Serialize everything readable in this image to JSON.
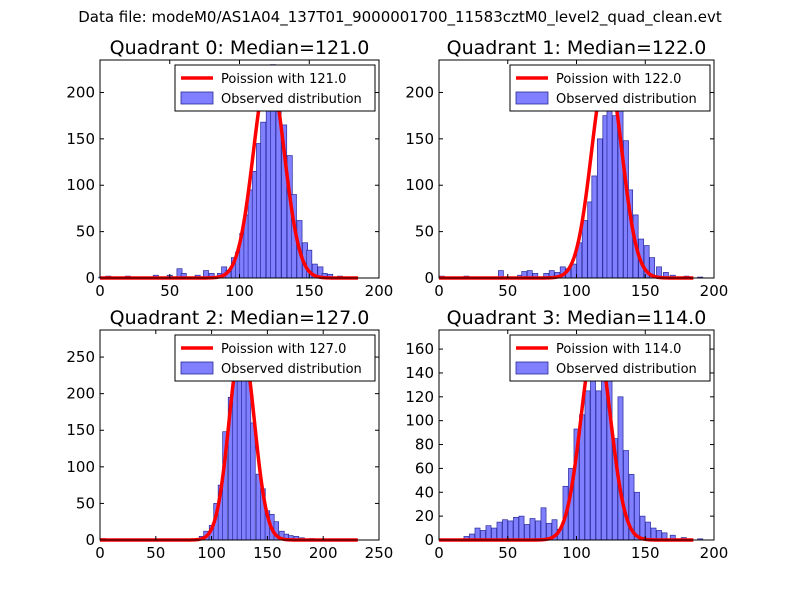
{
  "figure": {
    "suptitle": "Data file: modeM0/AS1A04_137T01_9000001700_11583cztM0_level2_quad_clean.evt"
  },
  "colors": {
    "hist_fill": "#7f7fff",
    "hist_edge": "#2a2a9a",
    "poisson_line": "#ff0000",
    "axes": "#000000",
    "legend_edge": "#000000"
  },
  "chart_data": [
    {
      "type": "bar",
      "title": "Quadrant 0: Median=121.0",
      "xlim": [
        0,
        200
      ],
      "ylim": [
        0,
        235
      ],
      "xticks": [
        0,
        50,
        100,
        150,
        200
      ],
      "yticks": [
        0,
        50,
        100,
        150,
        200
      ],
      "legend": {
        "position": "top-right",
        "entries": [
          "Poission with 121.0",
          "Observed distribution"
        ]
      },
      "poisson_mean": 121.0,
      "poisson_peak": 225,
      "bin_width": 3.7,
      "histogram": {
        "bin_centers": [
          1,
          6,
          13,
          20,
          30,
          40,
          50,
          57,
          60,
          70,
          76,
          80,
          86,
          89,
          92,
          96,
          99,
          102,
          105,
          108,
          111,
          114,
          117,
          121,
          124,
          128,
          132,
          136,
          139,
          143,
          147,
          150,
          154,
          158,
          161,
          165,
          172,
          179
        ],
        "counts": [
          1,
          2,
          1,
          2,
          1,
          3,
          3,
          10,
          5,
          3,
          8,
          5,
          5,
          12,
          8,
          22,
          28,
          48,
          68,
          95,
          115,
          145,
          168,
          200,
          230,
          195,
          165,
          132,
          90,
          62,
          38,
          30,
          15,
          12,
          5,
          4,
          2,
          1
        ]
      }
    },
    {
      "type": "bar",
      "title": "Quadrant 1: Median=122.0",
      "xlim": [
        0,
        200
      ],
      "ylim": [
        0,
        235
      ],
      "xticks": [
        0,
        50,
        100,
        150,
        200
      ],
      "yticks": [
        0,
        50,
        100,
        150,
        200
      ],
      "legend": {
        "position": "top-right",
        "entries": [
          "Poission with 122.0",
          "Observed distribution"
        ]
      },
      "poisson_mean": 122.0,
      "poisson_peak": 225,
      "bin_width": 3.7,
      "histogram": {
        "bin_centers": [
          2,
          11,
          20,
          30,
          39,
          45,
          59,
          62,
          66,
          70,
          78,
          82,
          86,
          90,
          94,
          98,
          102,
          106,
          110,
          113,
          117,
          121,
          124,
          128,
          132,
          136,
          139,
          143,
          147,
          151,
          155,
          160,
          165,
          170,
          180,
          190
        ],
        "counts": [
          2,
          1,
          2,
          1,
          1,
          8,
          3,
          7,
          8,
          5,
          5,
          8,
          6,
          12,
          10,
          15,
          38,
          62,
          82,
          110,
          150,
          175,
          210,
          175,
          195,
          148,
          95,
          68,
          42,
          35,
          22,
          12,
          6,
          3,
          2,
          1
        ]
      }
    },
    {
      "type": "bar",
      "title": "Quadrant 2: Median=127.0",
      "xlim": [
        0,
        250
      ],
      "ylim": [
        0,
        287
      ],
      "xticks": [
        0,
        50,
        100,
        150,
        200,
        250
      ],
      "yticks": [
        0,
        50,
        100,
        150,
        200,
        250
      ],
      "legend": {
        "position": "top-right",
        "entries": [
          "Poission with 127.0",
          "Observed distribution"
        ]
      },
      "poisson_mean": 127.0,
      "poisson_peak": 270,
      "bin_width": 4.2,
      "histogram": {
        "bin_centers": [
          3,
          20,
          50,
          80,
          91,
          95,
          100,
          104,
          108,
          112,
          117,
          121,
          125,
          129,
          133,
          137,
          142,
          146,
          150,
          154,
          158,
          163,
          167,
          171,
          176,
          181,
          190,
          215
        ],
        "counts": [
          2,
          1,
          1,
          1,
          5,
          12,
          20,
          50,
          75,
          148,
          195,
          270,
          258,
          245,
          220,
          160,
          90,
          70,
          40,
          35,
          25,
          12,
          8,
          6,
          5,
          3,
          2,
          1
        ]
      }
    },
    {
      "type": "bar",
      "title": "Quadrant 3: Median=114.0",
      "xlim": [
        0,
        200
      ],
      "ylim": [
        0,
        176
      ],
      "xticks": [
        0,
        50,
        100,
        150,
        200
      ],
      "yticks": [
        0,
        20,
        40,
        60,
        80,
        100,
        120,
        140,
        160
      ],
      "legend": {
        "position": "top-right",
        "entries": [
          "Poission with 114.0",
          "Observed distribution"
        ]
      },
      "poisson_mean": 114.0,
      "poisson_peak": 170,
      "bin_width": 3.7,
      "histogram": {
        "bin_centers": [
          2,
          20,
          24,
          28,
          32,
          36,
          40,
          44,
          48,
          52,
          56,
          60,
          64,
          68,
          72,
          76,
          80,
          84,
          88,
          92,
          96,
          100,
          104,
          108,
          112,
          116,
          120,
          124,
          128,
          132,
          136,
          140,
          144,
          148,
          152,
          156,
          160,
          164,
          170,
          178,
          190
        ],
        "counts": [
          1,
          3,
          5,
          10,
          8,
          12,
          10,
          15,
          17,
          16,
          19,
          20,
          13,
          18,
          16,
          27,
          14,
          17,
          9,
          45,
          60,
          93,
          105,
          125,
          155,
          125,
          163,
          135,
          85,
          120,
          75,
          55,
          40,
          20,
          15,
          10,
          8,
          6,
          4,
          2,
          1
        ]
      }
    }
  ]
}
